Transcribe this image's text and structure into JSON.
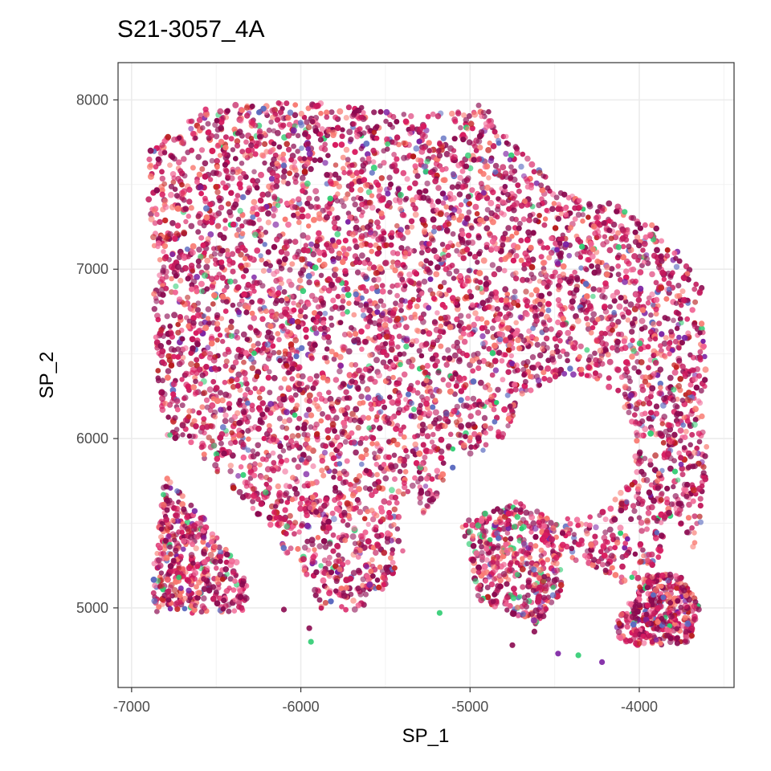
{
  "chart_data": {
    "type": "scatter",
    "title": "S21-3057_4A",
    "xlabel": "SP_1",
    "ylabel": "SP_2",
    "xlim": [
      -7080,
      -3440
    ],
    "ylim": [
      4530,
      8220
    ],
    "x_ticks": [
      -7000,
      -6000,
      -5000,
      -4000
    ],
    "y_ticks": [
      5000,
      6000,
      7000,
      8000
    ],
    "x_tick_labels": [
      "-7000",
      "-6000",
      "-5000",
      "-4000"
    ],
    "y_tick_labels": [
      "5000",
      "6000",
      "7000",
      "8000"
    ],
    "grid": true,
    "legend": "none",
    "palette": [
      "#8b0a50",
      "#c2185b",
      "#d81b60",
      "#f06292",
      "#f8766d",
      "#b71c1c",
      "#c62828",
      "#7b1fa2",
      "#5c6bc0",
      "#2ecc71"
    ],
    "regions": [
      {
        "name": "main tissue",
        "polygon": [
          [
            -6900,
            7700
          ],
          [
            -6600,
            7950
          ],
          [
            -6300,
            7980
          ],
          [
            -5850,
            8000
          ],
          [
            -5600,
            7950
          ],
          [
            -5300,
            7900
          ],
          [
            -4850,
            7990
          ],
          [
            -4850,
            7850
          ],
          [
            -4600,
            7600
          ],
          [
            -4450,
            7450
          ],
          [
            -4200,
            7400
          ],
          [
            -3950,
            7300
          ],
          [
            -3720,
            7050
          ],
          [
            -3620,
            6900
          ],
          [
            -3610,
            6500
          ],
          [
            -3600,
            6000
          ],
          [
            -3620,
            5400
          ],
          [
            -3700,
            5350
          ],
          [
            -3800,
            5600
          ],
          [
            -3900,
            5200
          ],
          [
            -4100,
            5150
          ],
          [
            -4300,
            5250
          ],
          [
            -4500,
            5300
          ],
          [
            -4700,
            5800
          ],
          [
            -4800,
            6000
          ],
          [
            -5100,
            5800
          ],
          [
            -5300,
            5500
          ],
          [
            -5500,
            5100
          ],
          [
            -5700,
            4970
          ],
          [
            -5900,
            5000
          ],
          [
            -6000,
            5200
          ],
          [
            -6200,
            5500
          ],
          [
            -6400,
            5700
          ],
          [
            -6600,
            5900
          ],
          [
            -6800,
            6000
          ],
          [
            -6850,
            6400
          ],
          [
            -6880,
            7000
          ],
          [
            -6900,
            7400
          ]
        ],
        "count": 5200,
        "green_share": 0.02
      },
      {
        "name": "lower-left fragment",
        "polygon": [
          [
            -6800,
            5800
          ],
          [
            -6550,
            5500
          ],
          [
            -6320,
            5200
          ],
          [
            -6320,
            4980
          ],
          [
            -6600,
            4960
          ],
          [
            -6870,
            4980
          ],
          [
            -6870,
            5300
          ]
        ],
        "count": 420,
        "green_share": 0.04
      },
      {
        "name": "central lobe",
        "polygon": [
          [
            -5050,
            5500
          ],
          [
            -4700,
            5650
          ],
          [
            -4500,
            5500
          ],
          [
            -4450,
            5100
          ],
          [
            -4600,
            4900
          ],
          [
            -4950,
            5050
          ]
        ],
        "count": 420,
        "green_share": 0.06
      },
      {
        "name": "lower-right blob",
        "polygon": [
          [
            -4150,
            4900
          ],
          [
            -3950,
            5200
          ],
          [
            -3760,
            5200
          ],
          [
            -3640,
            5000
          ],
          [
            -3700,
            4800
          ],
          [
            -3950,
            4770
          ],
          [
            -4120,
            4800
          ]
        ],
        "count": 380,
        "green_share": 0.04
      }
    ],
    "scattered_points": [
      {
        "x": -5950,
        "y": 4880
      },
      {
        "x": -5940,
        "y": 4800
      },
      {
        "x": -4750,
        "y": 4780
      },
      {
        "x": -4480,
        "y": 4730
      },
      {
        "x": -4360,
        "y": 4720
      },
      {
        "x": -4220,
        "y": 4680
      },
      {
        "x": -4620,
        "y": 4860
      },
      {
        "x": -5180,
        "y": 4970
      },
      {
        "x": -6100,
        "y": 4990
      }
    ]
  }
}
